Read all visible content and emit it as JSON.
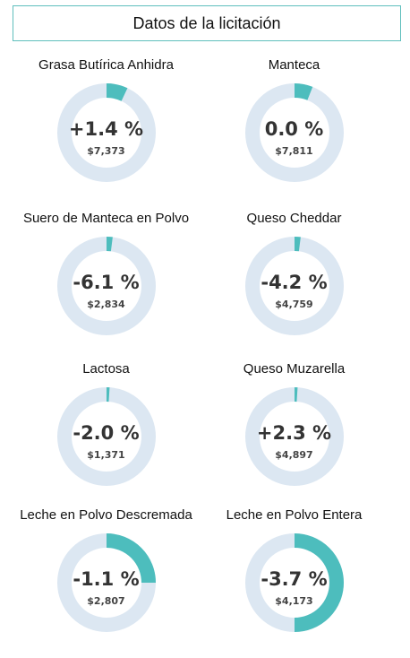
{
  "header": {
    "title": "Datos de la licitación"
  },
  "colors": {
    "ring_track": "#dce7f2",
    "ring_fill": "#4dbdbd",
    "header_border": "#5fbfbd"
  },
  "items": [
    {
      "name": "Grasa Butírica Anhidra",
      "change": "+1.4 %",
      "price": "$7,373",
      "fill_fraction": 0.07
    },
    {
      "name": "Manteca",
      "change": "0.0 %",
      "price": "$7,811",
      "fill_fraction": 0.06
    },
    {
      "name": "Suero de Manteca en Polvo",
      "change": "-6.1 %",
      "price": "$2,834",
      "fill_fraction": 0.02
    },
    {
      "name": "Queso Cheddar",
      "change": "-4.2 %",
      "price": "$4,759",
      "fill_fraction": 0.02
    },
    {
      "name": "Lactosa",
      "change": "-2.0 %",
      "price": "$1,371",
      "fill_fraction": 0.01
    },
    {
      "name": "Queso Muzarella",
      "change": "+2.3 %",
      "price": "$4,897",
      "fill_fraction": 0.01
    },
    {
      "name": "Leche en Polvo Descremada",
      "change": "-1.1 %",
      "price": "$2,807",
      "fill_fraction": 0.25
    },
    {
      "name": "Leche en Polvo Entera",
      "change": "-3.7 %",
      "price": "$4,173",
      "fill_fraction": 0.5
    }
  ]
}
